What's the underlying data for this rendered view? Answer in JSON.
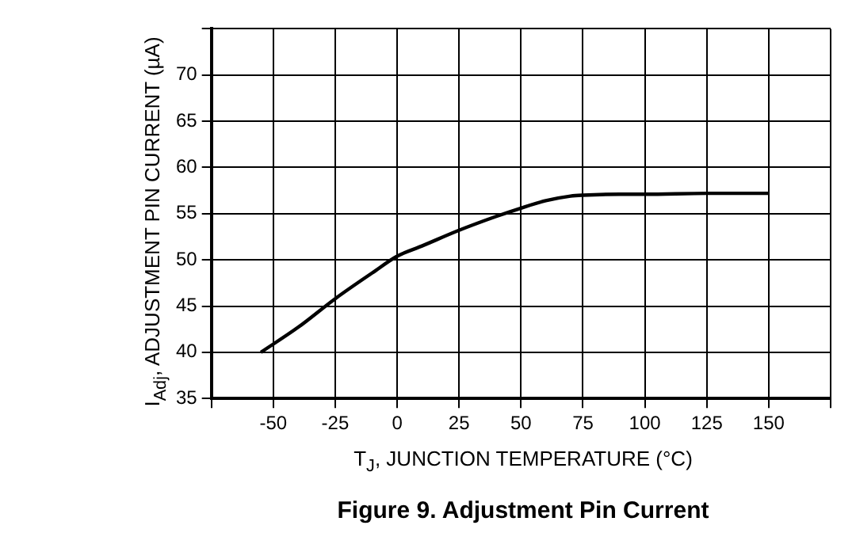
{
  "chart_data": {
    "type": "line",
    "title": "Figure 9. Adjustment Pin Current",
    "xlabel": "T$_{J}$, JUNCTION TEMPERATURE (°C)",
    "ylabel": "I$_{Adj}$, ADJUSTMENT PIN CURRENT (µA)",
    "x": [
      -55,
      -40,
      -25,
      -10,
      0,
      10,
      25,
      40,
      50,
      60,
      70,
      75,
      90,
      100,
      125,
      150
    ],
    "series": [
      {
        "color": "#000000",
        "values": [
          40,
          42.7,
          45.8,
          48.6,
          50.4,
          51.5,
          53.2,
          54.7,
          55.6,
          56.4,
          56.9,
          57.0,
          57.1,
          57.1,
          57.2,
          57.2
        ]
      }
    ],
    "xlim": [
      -75,
      175
    ],
    "xticks": [
      {
        "value": -75,
        "label": null
      },
      -50,
      -25,
      0,
      25,
      50,
      75,
      100,
      125,
      150,
      {
        "value": 175,
        "label": null
      }
    ],
    "ylim": [
      35,
      75
    ],
    "yticks": [
      35,
      40,
      45,
      50,
      55,
      60,
      65,
      70,
      {
        "value": 75,
        "label": null
      }
    ],
    "grid": true,
    "legend": false,
    "marker": "none",
    "line_style": "solid"
  }
}
